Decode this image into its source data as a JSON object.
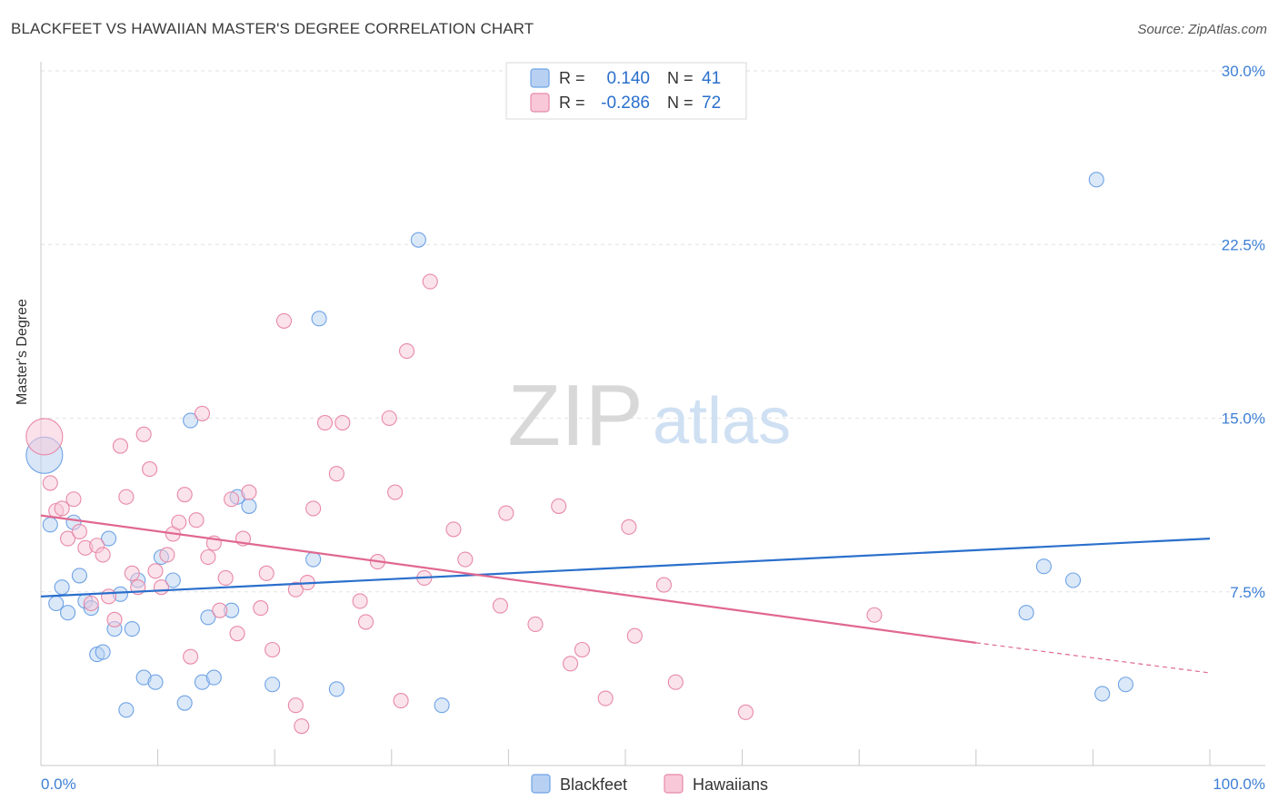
{
  "title": "BLACKFEET VS HAWAIIAN MASTER'S DEGREE CORRELATION CHART",
  "source": "Source: ZipAtlas.com",
  "watermark": {
    "zip": "ZIP",
    "atlas": "atlas"
  },
  "legend_top": [
    {
      "r_label": "R =",
      "r_value": "0.140",
      "n_label": "N =",
      "n_value": "41",
      "color": "#6fa3e6",
      "fill": "#b8d1f2"
    },
    {
      "r_label": "R =",
      "r_value": "-0.286",
      "n_label": "N =",
      "n_value": "72",
      "color": "#e889a8",
      "fill": "#f8c8d8"
    }
  ],
  "chart_data": {
    "type": "scatter",
    "title": "BLACKFEET VS HAWAIIAN MASTER'S DEGREE CORRELATION CHART",
    "xlabel": "",
    "ylabel": "Master's Degree",
    "xlim": [
      0,
      100
    ],
    "ylim": [
      0,
      30
    ],
    "x_tick_labels": [
      "0.0%",
      "100.0%"
    ],
    "y_ticks": [
      7.5,
      15.0,
      22.5,
      30.0
    ],
    "y_tick_labels": [
      "7.5%",
      "15.0%",
      "22.5%",
      "30.0%"
    ],
    "grid": true,
    "series": [
      {
        "name": "Blackfeet",
        "color": "#6fa3e6",
        "fill": "#b8d1f2",
        "trend": {
          "x": [
            0,
            100
          ],
          "y": [
            7.3,
            9.8
          ],
          "color": "#2a6fcc"
        },
        "points": [
          {
            "x": 0.3,
            "y": 13.4,
            "big": true
          },
          {
            "x": 0.8,
            "y": 10.4
          },
          {
            "x": 1.3,
            "y": 7.0
          },
          {
            "x": 1.8,
            "y": 7.7
          },
          {
            "x": 2.3,
            "y": 6.6
          },
          {
            "x": 2.8,
            "y": 10.5
          },
          {
            "x": 3.3,
            "y": 8.2
          },
          {
            "x": 3.8,
            "y": 7.1
          },
          {
            "x": 4.3,
            "y": 6.8
          },
          {
            "x": 4.8,
            "y": 4.8
          },
          {
            "x": 5.3,
            "y": 4.9
          },
          {
            "x": 5.8,
            "y": 9.8
          },
          {
            "x": 6.3,
            "y": 5.9
          },
          {
            "x": 6.8,
            "y": 7.4
          },
          {
            "x": 7.3,
            "y": 2.4
          },
          {
            "x": 7.8,
            "y": 5.9
          },
          {
            "x": 8.3,
            "y": 8.0
          },
          {
            "x": 8.8,
            "y": 3.8
          },
          {
            "x": 9.8,
            "y": 3.6
          },
          {
            "x": 10.3,
            "y": 9.0
          },
          {
            "x": 11.3,
            "y": 8.0
          },
          {
            "x": 12.3,
            "y": 2.7
          },
          {
            "x": 12.8,
            "y": 14.9
          },
          {
            "x": 13.8,
            "y": 3.6
          },
          {
            "x": 14.3,
            "y": 6.4
          },
          {
            "x": 14.8,
            "y": 3.8
          },
          {
            "x": 16.3,
            "y": 6.7
          },
          {
            "x": 16.8,
            "y": 11.6
          },
          {
            "x": 17.8,
            "y": 11.2
          },
          {
            "x": 19.8,
            "y": 3.5
          },
          {
            "x": 23.3,
            "y": 8.9
          },
          {
            "x": 23.8,
            "y": 19.3
          },
          {
            "x": 25.3,
            "y": 3.3
          },
          {
            "x": 32.3,
            "y": 22.7
          },
          {
            "x": 34.3,
            "y": 2.6
          },
          {
            "x": 84.3,
            "y": 6.6
          },
          {
            "x": 85.8,
            "y": 8.6
          },
          {
            "x": 88.3,
            "y": 8.0
          },
          {
            "x": 90.3,
            "y": 25.3
          },
          {
            "x": 90.8,
            "y": 3.1
          },
          {
            "x": 92.8,
            "y": 3.5
          }
        ]
      },
      {
        "name": "Hawaiians",
        "color": "#e889a8",
        "fill": "#f8c8d8",
        "trend": {
          "x": [
            0,
            80
          ],
          "y": [
            10.8,
            5.3
          ],
          "color": "#e0688f"
        },
        "trend_dashed": {
          "x": [
            80,
            100
          ],
          "y": [
            5.3,
            4.0
          ]
        },
        "points": [
          {
            "x": 0.3,
            "y": 14.2,
            "big": true
          },
          {
            "x": 0.8,
            "y": 12.2
          },
          {
            "x": 1.3,
            "y": 11.0
          },
          {
            "x": 1.8,
            "y": 11.1
          },
          {
            "x": 2.3,
            "y": 9.8
          },
          {
            "x": 2.8,
            "y": 11.5
          },
          {
            "x": 3.3,
            "y": 10.1
          },
          {
            "x": 3.8,
            "y": 9.4
          },
          {
            "x": 4.3,
            "y": 7.0
          },
          {
            "x": 4.8,
            "y": 9.5
          },
          {
            "x": 5.3,
            "y": 9.1
          },
          {
            "x": 5.8,
            "y": 7.3
          },
          {
            "x": 6.3,
            "y": 6.3
          },
          {
            "x": 6.8,
            "y": 13.8
          },
          {
            "x": 7.3,
            "y": 11.6
          },
          {
            "x": 7.8,
            "y": 8.3
          },
          {
            "x": 8.3,
            "y": 7.7
          },
          {
            "x": 8.8,
            "y": 14.3
          },
          {
            "x": 9.3,
            "y": 12.8
          },
          {
            "x": 9.8,
            "y": 8.4
          },
          {
            "x": 10.3,
            "y": 7.7
          },
          {
            "x": 10.8,
            "y": 9.1
          },
          {
            "x": 11.3,
            "y": 10.0
          },
          {
            "x": 11.8,
            "y": 10.5
          },
          {
            "x": 12.3,
            "y": 11.7
          },
          {
            "x": 12.8,
            "y": 4.7
          },
          {
            "x": 13.3,
            "y": 10.6
          },
          {
            "x": 13.8,
            "y": 15.2
          },
          {
            "x": 14.3,
            "y": 9.0
          },
          {
            "x": 14.8,
            "y": 9.6
          },
          {
            "x": 15.3,
            "y": 6.7
          },
          {
            "x": 15.8,
            "y": 8.1
          },
          {
            "x": 16.3,
            "y": 11.5
          },
          {
            "x": 16.8,
            "y": 5.7
          },
          {
            "x": 17.3,
            "y": 9.8
          },
          {
            "x": 17.8,
            "y": 11.8
          },
          {
            "x": 18.8,
            "y": 6.8
          },
          {
            "x": 19.3,
            "y": 8.3
          },
          {
            "x": 19.8,
            "y": 5.0
          },
          {
            "x": 20.8,
            "y": 19.2
          },
          {
            "x": 21.8,
            "y": 7.6
          },
          {
            "x": 21.8,
            "y": 2.6
          },
          {
            "x": 22.3,
            "y": 1.7
          },
          {
            "x": 22.8,
            "y": 7.9
          },
          {
            "x": 23.3,
            "y": 11.1
          },
          {
            "x": 24.3,
            "y": 14.8
          },
          {
            "x": 25.3,
            "y": 12.6
          },
          {
            "x": 25.8,
            "y": 14.8
          },
          {
            "x": 27.3,
            "y": 7.1
          },
          {
            "x": 27.8,
            "y": 6.2
          },
          {
            "x": 28.8,
            "y": 8.8
          },
          {
            "x": 29.8,
            "y": 15.0
          },
          {
            "x": 30.3,
            "y": 11.8
          },
          {
            "x": 30.8,
            "y": 2.8
          },
          {
            "x": 31.3,
            "y": 17.9
          },
          {
            "x": 32.8,
            "y": 8.1
          },
          {
            "x": 33.3,
            "y": 20.9
          },
          {
            "x": 35.3,
            "y": 10.2
          },
          {
            "x": 36.3,
            "y": 8.9
          },
          {
            "x": 39.3,
            "y": 6.9
          },
          {
            "x": 39.8,
            "y": 10.9
          },
          {
            "x": 42.3,
            "y": 6.1
          },
          {
            "x": 44.3,
            "y": 11.2
          },
          {
            "x": 45.3,
            "y": 4.4
          },
          {
            "x": 46.3,
            "y": 5.0
          },
          {
            "x": 48.3,
            "y": 2.9
          },
          {
            "x": 50.3,
            "y": 10.3
          },
          {
            "x": 50.8,
            "y": 5.6
          },
          {
            "x": 53.3,
            "y": 7.8
          },
          {
            "x": 54.3,
            "y": 3.6
          },
          {
            "x": 60.3,
            "y": 2.3
          },
          {
            "x": 71.3,
            "y": 6.5
          }
        ]
      }
    ]
  }
}
